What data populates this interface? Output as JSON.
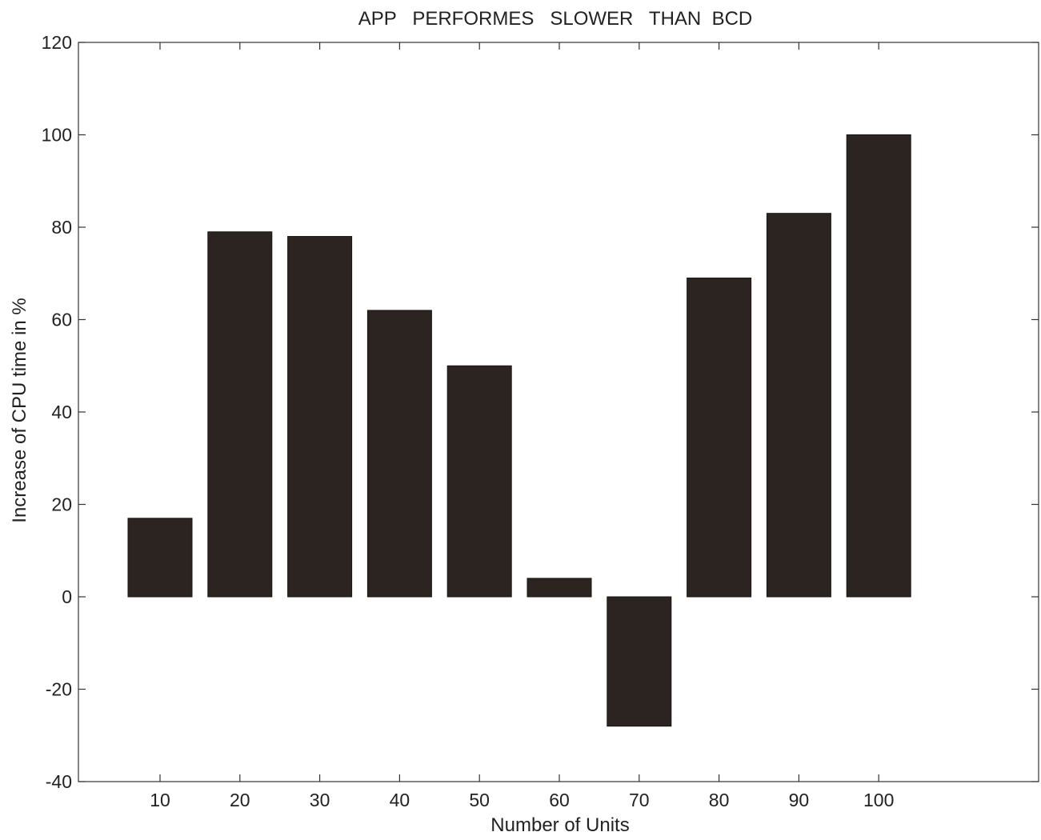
{
  "chart_data": {
    "type": "bar",
    "title": "APP   PERFORMES   SLOWER   THAN  BCD",
    "xlabel": "Number of Units",
    "ylabel": "Increase of CPU time in %",
    "categories": [
      "10",
      "20",
      "30",
      "40",
      "50",
      "60",
      "70",
      "80",
      "90",
      "100"
    ],
    "values": [
      17,
      79,
      78,
      62,
      50,
      4,
      -28,
      69,
      83,
      100
    ],
    "ylim": [
      -40,
      120
    ],
    "yticks": [
      "-40",
      "-20",
      "0",
      "20",
      "40",
      "60",
      "80",
      "100",
      "120"
    ],
    "grid": false,
    "bar_color": "#2b2420"
  }
}
